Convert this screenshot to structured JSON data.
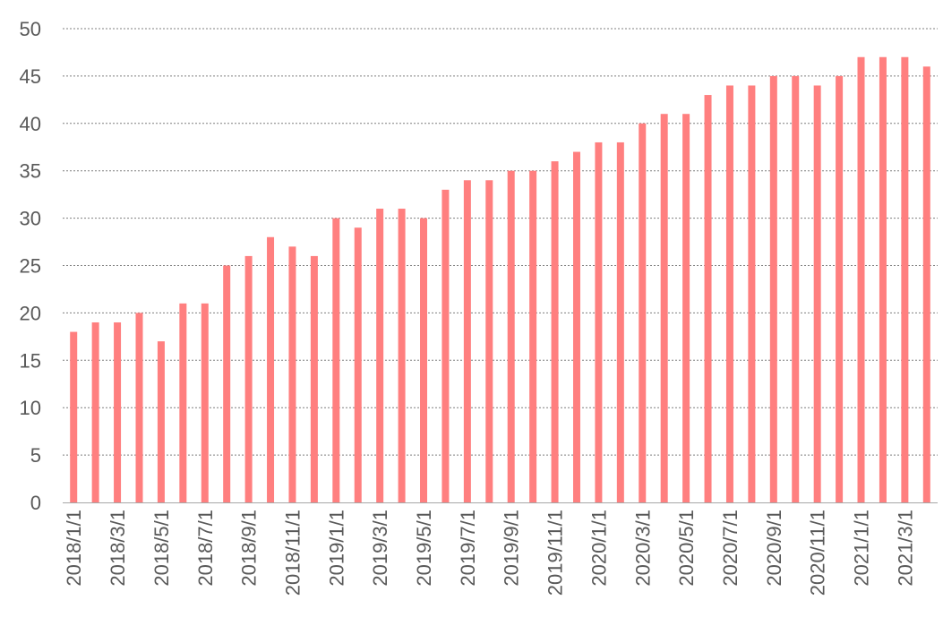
{
  "chart_data": {
    "type": "bar",
    "title": "",
    "xlabel": "",
    "ylabel": "",
    "ylim": [
      0,
      50
    ],
    "yticks": [
      0,
      5,
      10,
      15,
      20,
      25,
      30,
      35,
      40,
      45,
      50
    ],
    "grid": true,
    "legend": "none",
    "bar_color": "#ff7f7f",
    "categories": [
      "2018/1/1",
      "2018/2/1",
      "2018/3/1",
      "2018/4/1",
      "2018/5/1",
      "2018/6/1",
      "2018/7/1",
      "2018/8/1",
      "2018/9/1",
      "2018/10/1",
      "2018/11/1",
      "2018/12/1",
      "2019/1/1",
      "2019/2/1",
      "2019/3/1",
      "2019/4/1",
      "2019/5/1",
      "2019/6/1",
      "2019/7/1",
      "2019/8/1",
      "2019/9/1",
      "2019/10/1",
      "2019/11/1",
      "2019/12/1",
      "2020/1/1",
      "2020/2/1",
      "2020/3/1",
      "2020/4/1",
      "2020/5/1",
      "2020/6/1",
      "2020/7/1",
      "2020/8/1",
      "2020/9/1",
      "2020/10/1",
      "2020/11/1",
      "2020/12/1",
      "2021/1/1",
      "2021/2/1",
      "2021/3/1",
      "2021/4/1"
    ],
    "tick_labels": [
      "2018/1/1",
      "2018/3/1",
      "2018/5/1",
      "2018/7/1",
      "2018/9/1",
      "2018/11/1",
      "2019/1/1",
      "2019/3/1",
      "2019/5/1",
      "2019/7/1",
      "2019/9/1",
      "2019/11/1",
      "2020/1/1",
      "2020/3/1",
      "2020/5/1",
      "2020/7/1",
      "2020/9/1",
      "2020/11/1",
      "2021/1/1",
      "2021/3/1"
    ],
    "values": [
      18,
      19,
      19,
      20,
      17,
      21,
      21,
      25,
      26,
      28,
      27,
      26,
      30,
      29,
      31,
      31,
      30,
      33,
      34,
      34,
      35,
      35,
      36,
      37,
      38,
      38,
      40,
      41,
      41,
      43,
      44,
      44,
      45,
      45,
      44,
      45,
      47,
      47,
      47,
      46
    ]
  }
}
